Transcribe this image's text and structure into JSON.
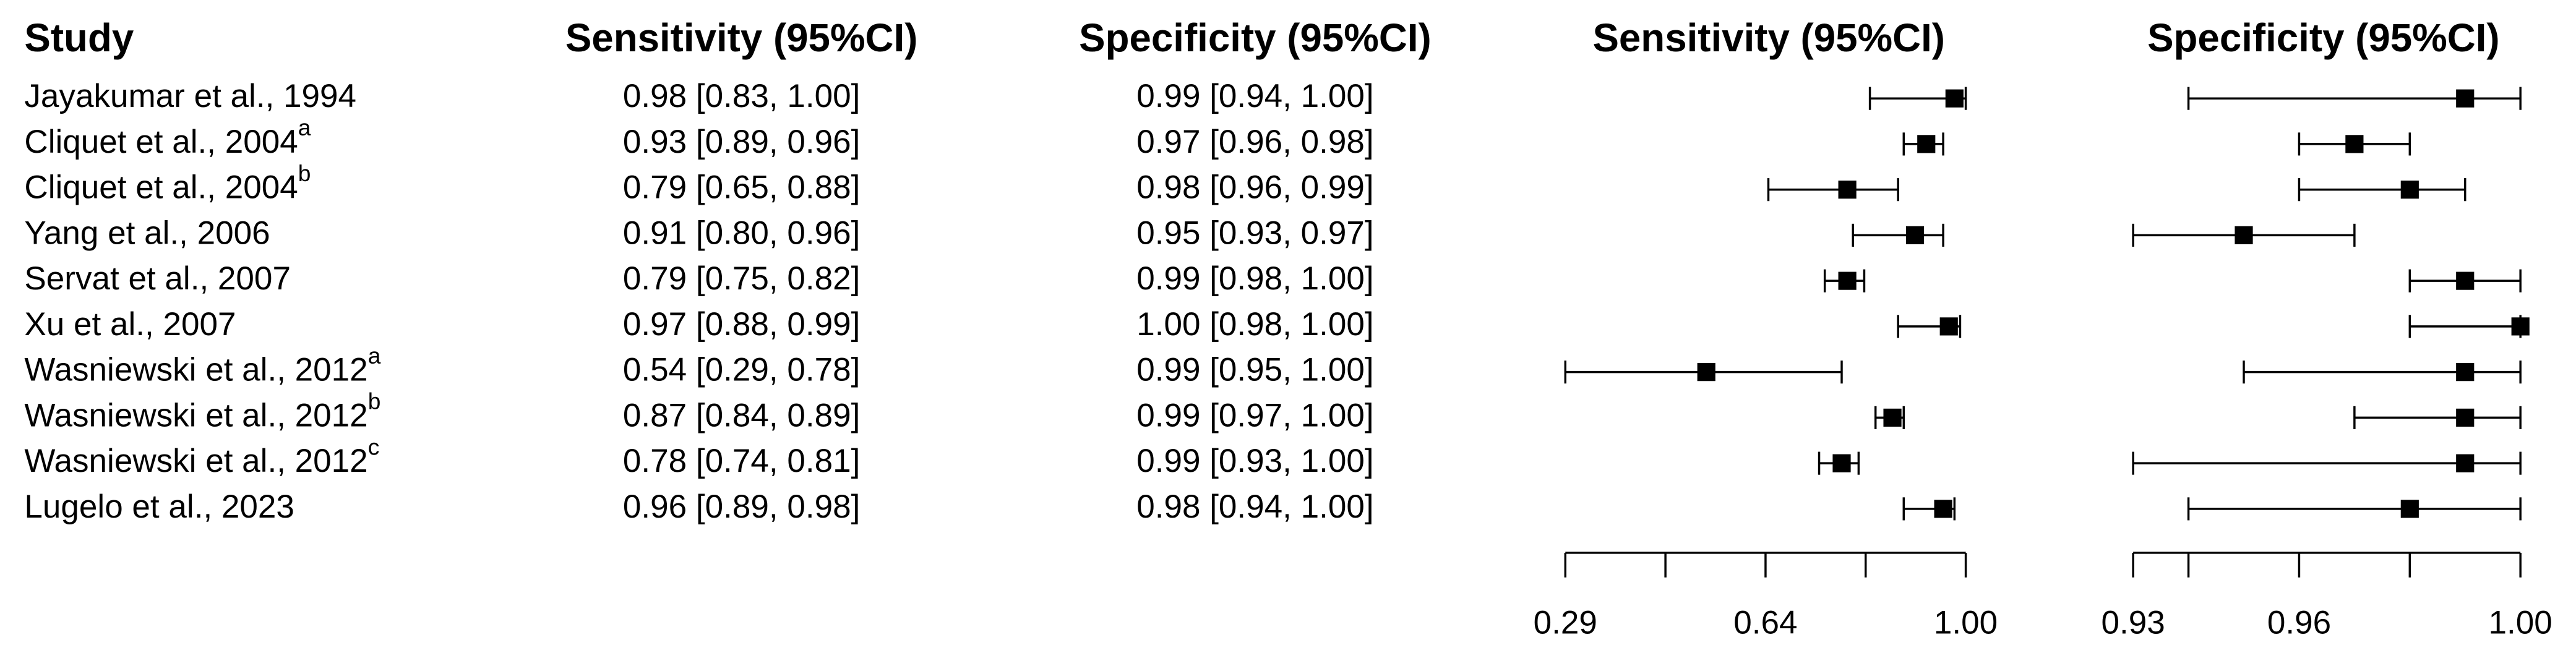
{
  "chart_data": {
    "type": "forest",
    "study_header": "Study",
    "studies": [
      {
        "name": "Jayakumar et al., 1994"
      },
      {
        "name": "Cliquet et al., 2004",
        "superscript": "a"
      },
      {
        "name": "Cliquet et al., 2004",
        "superscript": "b"
      },
      {
        "name": "Yang et al., 2006"
      },
      {
        "name": "Servat et al., 2007"
      },
      {
        "name": "Xu et al., 2007"
      },
      {
        "name": "Wasniewski et al., 2012",
        "superscript": "a"
      },
      {
        "name": "Wasniewski et al., 2012",
        "superscript": "b"
      },
      {
        "name": "Wasniewski et al., 2012",
        "superscript": "c"
      },
      {
        "name": "Lugelo et al., 2023"
      }
    ],
    "panels": [
      {
        "name": "Sensitivity (95%CI)",
        "color": "#000000",
        "values": [
          0.98,
          0.93,
          0.79,
          0.91,
          0.79,
          0.97,
          0.54,
          0.87,
          0.78,
          0.96
        ],
        "lower": [
          0.83,
          0.89,
          0.65,
          0.8,
          0.75,
          0.88,
          0.29,
          0.84,
          0.74,
          0.89
        ],
        "upper": [
          1.0,
          0.96,
          0.88,
          0.96,
          0.82,
          0.99,
          0.78,
          0.89,
          0.81,
          0.98
        ],
        "value_labels": [
          "0.98 [0.83, 1.00]",
          "0.93 [0.89, 0.96]",
          "0.79 [0.65, 0.88]",
          "0.91 [0.80, 0.96]",
          "0.79 [0.75, 0.82]",
          "0.97 [0.88, 0.99]",
          "0.54 [0.29, 0.78]",
          "0.87 [0.84, 0.89]",
          "0.78 [0.74, 0.81]",
          "0.96 [0.89, 0.98]"
        ],
        "xlim": [
          0.29,
          1.0
        ],
        "xticks": [
          0.29,
          {
            "value": 0.4675,
            "label": null
          },
          {
            "value": 0.645,
            "label": "0.64"
          },
          {
            "value": 0.8225,
            "label": null
          },
          {
            "value": 1.0,
            "label": "1.00"
          }
        ]
      },
      {
        "name": "Specificity (95%CI)",
        "color": "#000000",
        "values": [
          0.99,
          0.97,
          0.98,
          0.95,
          0.99,
          1.0,
          0.99,
          0.99,
          0.99,
          0.98
        ],
        "lower": [
          0.94,
          0.96,
          0.96,
          0.93,
          0.98,
          0.98,
          0.95,
          0.97,
          0.93,
          0.94
        ],
        "upper": [
          1.0,
          0.98,
          0.99,
          0.97,
          1.0,
          1.0,
          1.0,
          1.0,
          1.0,
          1.0
        ],
        "value_labels": [
          "0.99 [0.94, 1.00]",
          "0.97 [0.96, 0.98]",
          "0.98 [0.96, 0.99]",
          "0.95 [0.93, 0.97]",
          "0.99 [0.98, 1.00]",
          "1.00 [0.98, 1.00]",
          "0.99 [0.95, 1.00]",
          "0.99 [0.97, 1.00]",
          "0.99 [0.93, 1.00]",
          "0.98 [0.94, 1.00]"
        ],
        "xlim": [
          0.93,
          1.0
        ],
        "xticks": [
          0.93,
          {
            "value": 0.94,
            "label": null
          },
          0.96,
          {
            "value": 0.98,
            "label": null
          },
          {
            "value": 1.0,
            "label": "1.00"
          }
        ]
      }
    ]
  }
}
